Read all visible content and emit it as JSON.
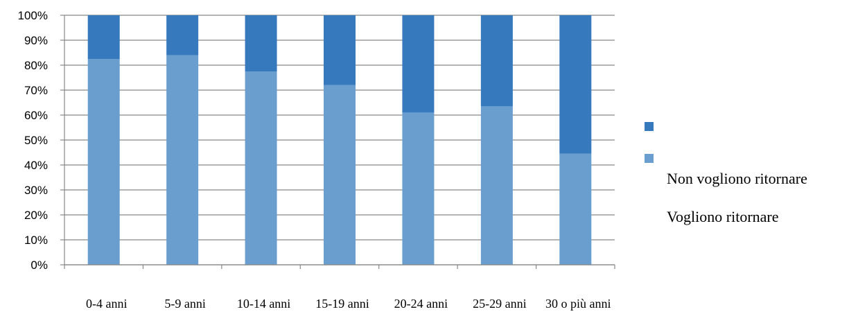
{
  "chart_data": {
    "type": "bar",
    "stacked": true,
    "percent": true,
    "categories": [
      "0-4 anni",
      "5-9 anni",
      "10-14 anni",
      "15-19 anni",
      "20-24 anni",
      "25-29 anni",
      "30 o più anni"
    ],
    "series": [
      {
        "name": "Vogliono ritornare",
        "color": "#6a9ecf",
        "values": [
          82.5,
          84,
          77.5,
          72,
          61,
          63.5,
          44.5
        ]
      },
      {
        "name": "Non vogliono ritornare",
        "color": "#3679bd",
        "values": [
          17.5,
          16,
          22.5,
          28,
          39,
          36.5,
          55.5
        ]
      }
    ],
    "ylim": [
      0,
      100
    ],
    "yticks": [
      "0%",
      "10%",
      "20%",
      "30%",
      "40%",
      "50%",
      "60%",
      "70%",
      "80%",
      "90%",
      "100%"
    ],
    "grid": true,
    "legend": {
      "placement": "right",
      "labels": [
        "Non vogliono ritornare",
        "Vogliono ritornare"
      ]
    }
  }
}
